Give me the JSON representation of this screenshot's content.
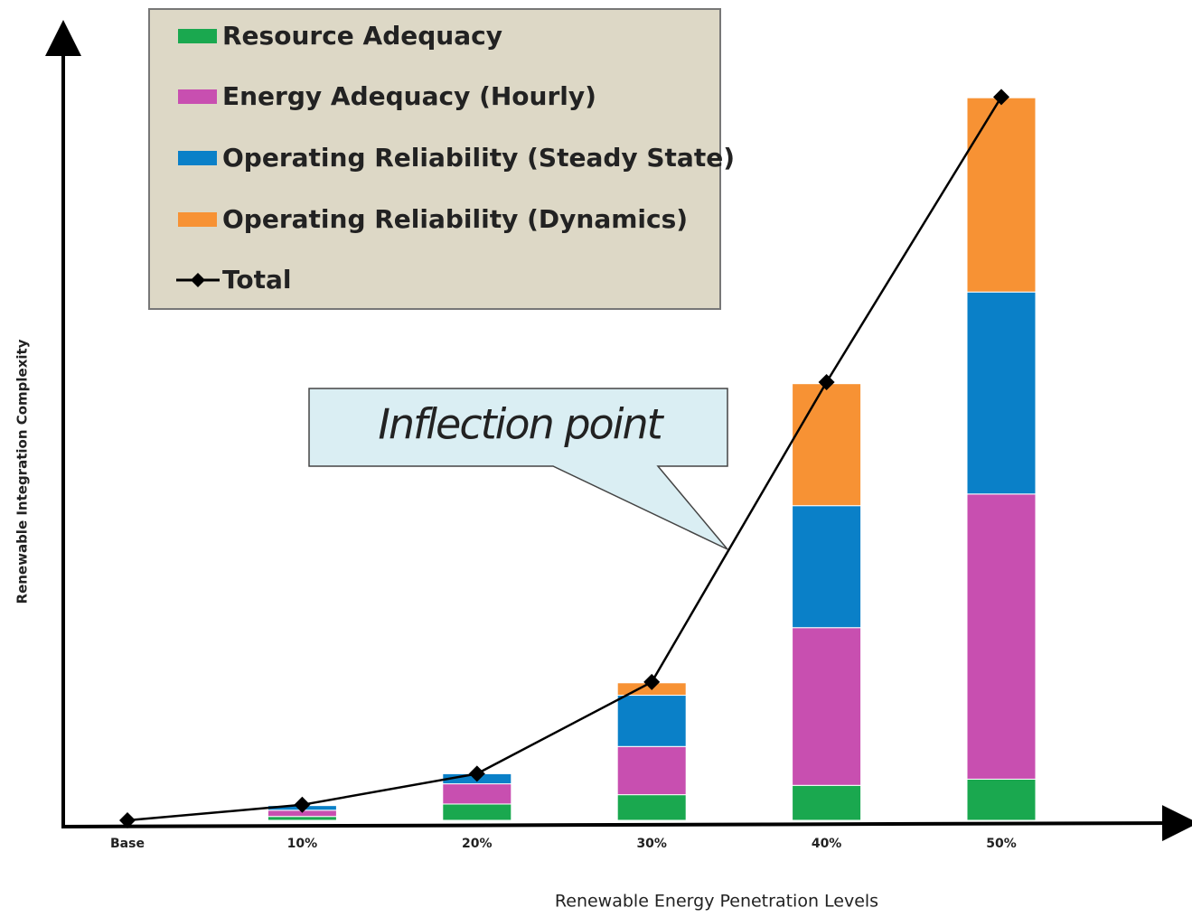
{
  "chart_data": {
    "type": "bar",
    "stacked": true,
    "x_label": "Renewable Energy Penetration  Levels",
    "y_label": "Renewable Integration Complexity",
    "annotation": "Inflection point",
    "categories": [
      "Base",
      "10%",
      "20%",
      "30%",
      "40%",
      "50%"
    ],
    "series": [
      {
        "name": "Resource Adequacy",
        "color": "#1aa84f",
        "values": [
          0,
          0.5,
          2.1,
          3.3,
          4.5,
          5.3
        ]
      },
      {
        "name": "Energy Adequacy (Hourly)",
        "color": "#c84fb0",
        "values": [
          0,
          0.8,
          2.6,
          6.2,
          20.3,
          36.7
        ]
      },
      {
        "name": "Operating Reliability (Steady State)",
        "color": "#0a80c8",
        "values": [
          0,
          0.6,
          1.3,
          6.6,
          15.7,
          26.0
        ]
      },
      {
        "name": "Operating Reliability (Dynamics)",
        "color": "#f79234",
        "values": [
          0,
          0,
          0,
          1.6,
          15.7,
          25.0
        ]
      },
      {
        "name": "Total",
        "type": "line",
        "color": "#000000",
        "values": [
          0,
          2.0,
          6.0,
          17.8,
          56.4,
          93.1
        ]
      }
    ],
    "ylim": [
      0,
      100
    ],
    "grid": false
  }
}
